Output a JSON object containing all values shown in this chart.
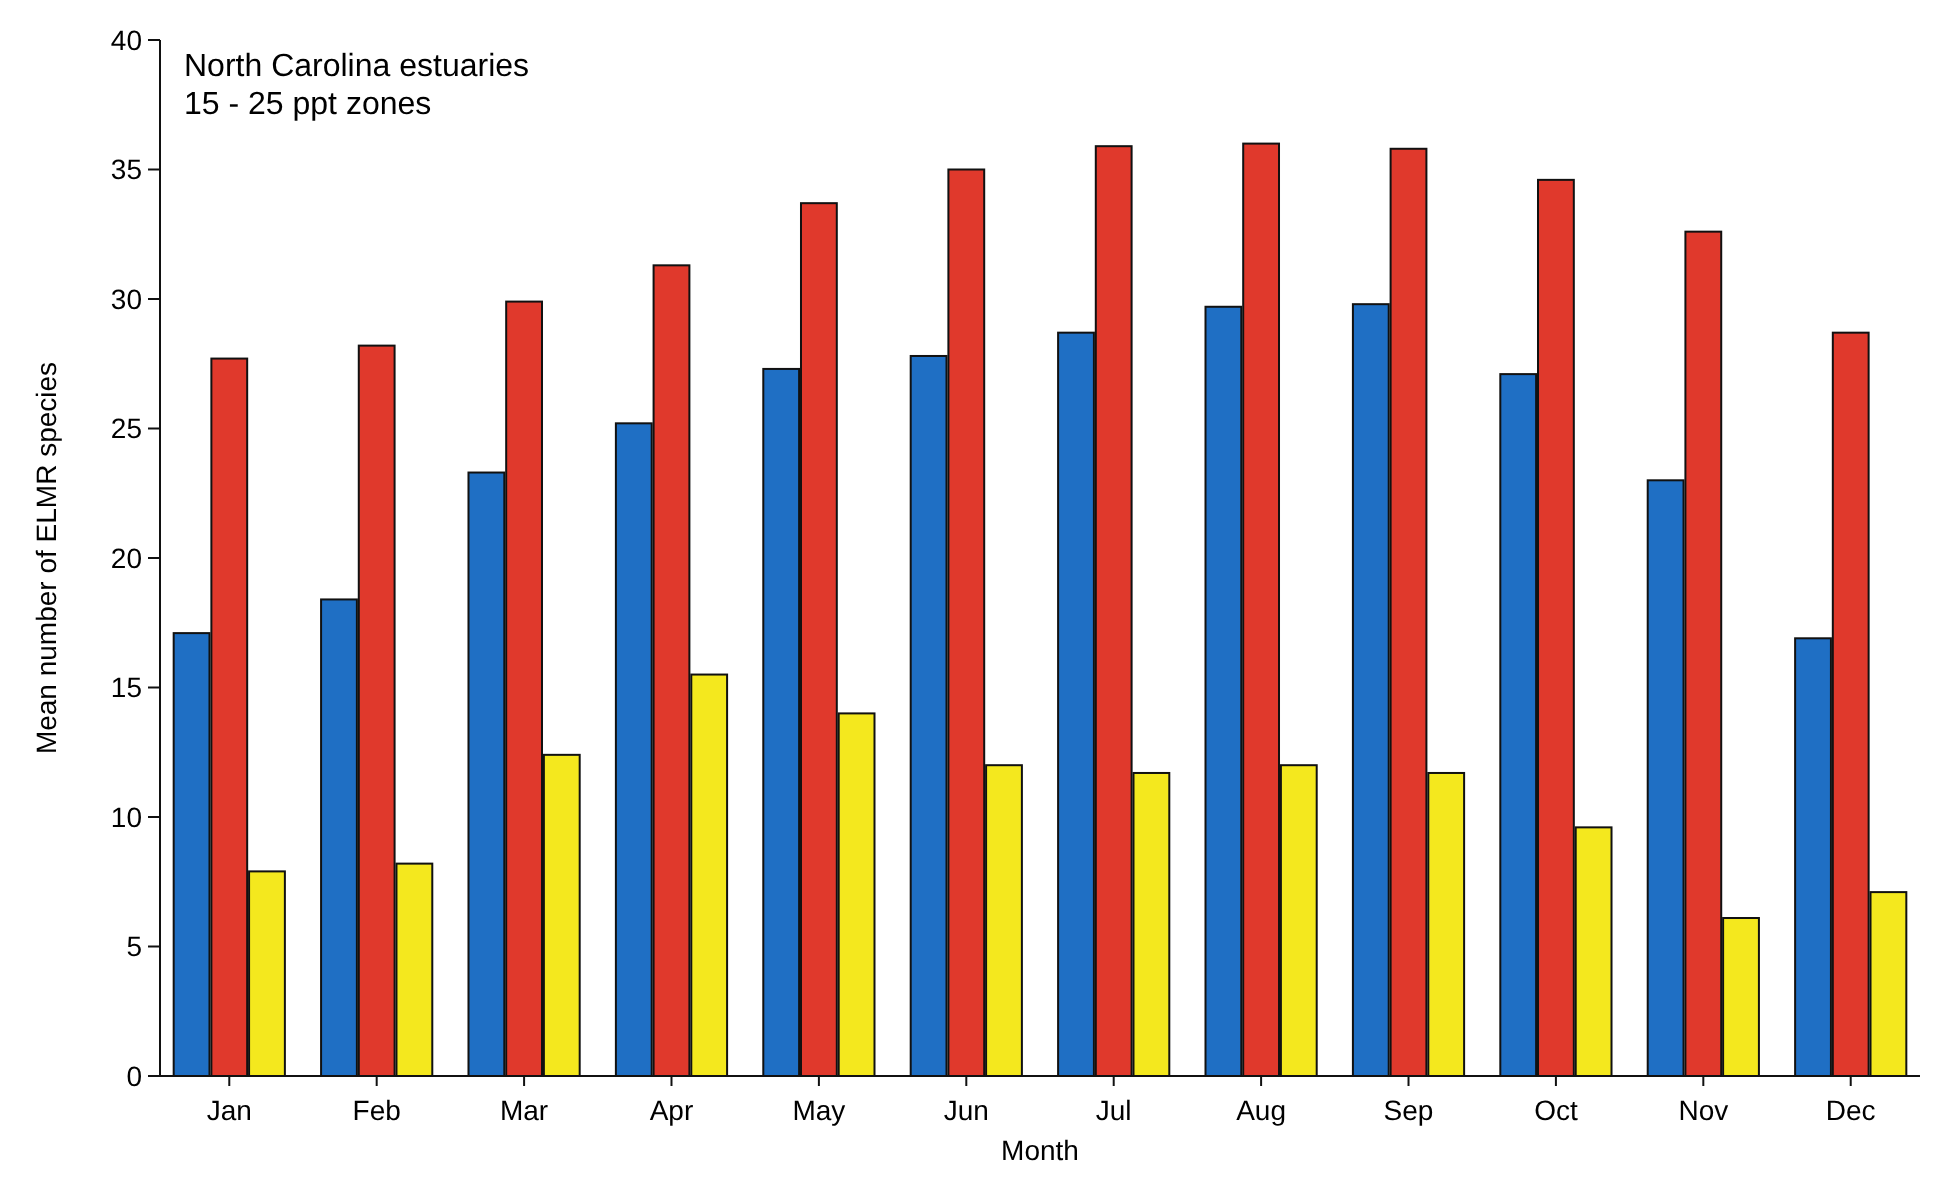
{
  "chart_data": {
    "type": "bar",
    "title": "North Carolina estuaries",
    "subtitle": "15 - 25 ppt zones",
    "xlabel": "Month",
    "ylabel": "Mean number of ELMR species",
    "categories": [
      "Jan",
      "Feb",
      "Mar",
      "Apr",
      "May",
      "Jun",
      "Jul",
      "Aug",
      "Sep",
      "Oct",
      "Nov",
      "Dec"
    ],
    "series": [
      {
        "color": "#1f6fc4",
        "values": [
          17.1,
          18.4,
          23.3,
          25.2,
          27.3,
          27.8,
          28.7,
          29.7,
          29.8,
          27.1,
          23.0,
          16.9
        ]
      },
      {
        "color": "#e0392c",
        "values": [
          27.7,
          28.2,
          29.9,
          31.3,
          33.7,
          35.0,
          35.9,
          36.0,
          35.8,
          34.6,
          32.6,
          28.7
        ]
      },
      {
        "color": "#f4e81e",
        "values": [
          7.9,
          8.2,
          12.4,
          15.5,
          14.0,
          12.0,
          11.7,
          12.0,
          11.7,
          9.6,
          6.1,
          7.1
        ]
      }
    ],
    "ylim": [
      0,
      40
    ],
    "yticks": [
      0,
      5,
      10,
      15,
      20,
      25,
      30,
      35,
      40
    ],
    "grid": false
  }
}
